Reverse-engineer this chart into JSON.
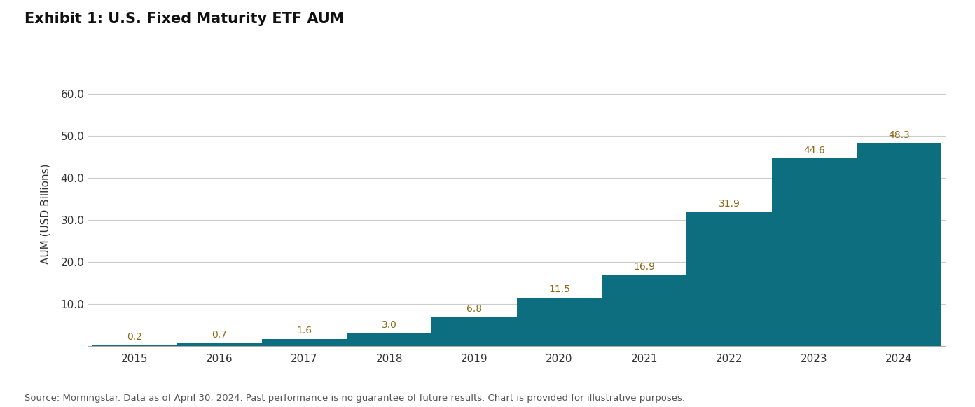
{
  "title": "Exhibit 1: U.S. Fixed Maturity ETF AUM",
  "years": [
    2015,
    2016,
    2017,
    2018,
    2019,
    2020,
    2021,
    2022,
    2023,
    2024
  ],
  "values": [
    0.2,
    0.7,
    1.6,
    3.0,
    6.8,
    11.5,
    16.9,
    31.9,
    44.6,
    48.3
  ],
  "bar_color": "#0d6e80",
  "ylabel": "AUM (USD Billions)",
  "ylim": [
    0,
    63
  ],
  "yticks": [
    10.0,
    20.0,
    30.0,
    40.0,
    50.0,
    60.0
  ],
  "ytick_labels": [
    "10.0",
    "20.0",
    "30.0",
    "40.0",
    "50.0",
    "60.0"
  ],
  "background_color": "#ffffff",
  "grid_color": "#cccccc",
  "title_fontsize": 15,
  "label_fontsize": 11,
  "tick_fontsize": 11,
  "annotation_fontsize": 10,
  "annotation_color": "#8B6914",
  "footer": "Source: Morningstar. Data as of April 30, 2024. Past performance is no guarantee of future results. Chart is provided for illustrative purposes.",
  "footer_fontsize": 9.5
}
